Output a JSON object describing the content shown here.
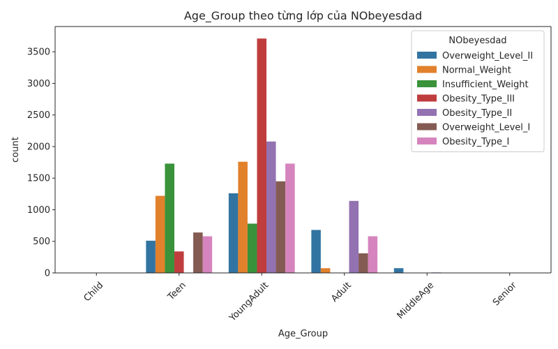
{
  "chart_data": {
    "type": "bar",
    "title": "Age_Group theo từng lớp của NObeyesdad",
    "xlabel": "Age_Group",
    "ylabel": "count",
    "categories": [
      "Child",
      "Teen",
      "YoungAdult",
      "Adult",
      "MiddleAge",
      "Senior"
    ],
    "ylim": [
      0,
      3900
    ],
    "yticks": [
      0,
      500,
      1000,
      1500,
      2000,
      2500,
      3000,
      3500
    ],
    "grid": false,
    "legend": {
      "title": "NObeyesdad",
      "placement": "top-right"
    },
    "series": [
      {
        "name": "Overweight_Level_II",
        "color": "#3274a1",
        "values": [
          0,
          510,
          1260,
          680,
          75,
          0
        ]
      },
      {
        "name": "Normal_Weight",
        "color": "#e1812c",
        "values": [
          0,
          1220,
          1760,
          75,
          0,
          0
        ]
      },
      {
        "name": "Insufficient_Weight",
        "color": "#3a923a",
        "values": [
          0,
          1730,
          780,
          5,
          0,
          0
        ]
      },
      {
        "name": "Obesity_Type_III",
        "color": "#c03d3e",
        "values": [
          0,
          340,
          3710,
          0,
          0,
          0
        ]
      },
      {
        "name": "Obesity_Type_II",
        "color": "#9372b2",
        "values": [
          0,
          5,
          2080,
          1140,
          8,
          0
        ]
      },
      {
        "name": "Overweight_Level_I",
        "color": "#845b53",
        "values": [
          0,
          640,
          1450,
          310,
          0,
          0
        ]
      },
      {
        "name": "Obesity_Type_I",
        "color": "#d684bd",
        "values": [
          0,
          580,
          1730,
          580,
          5,
          0
        ]
      }
    ]
  }
}
